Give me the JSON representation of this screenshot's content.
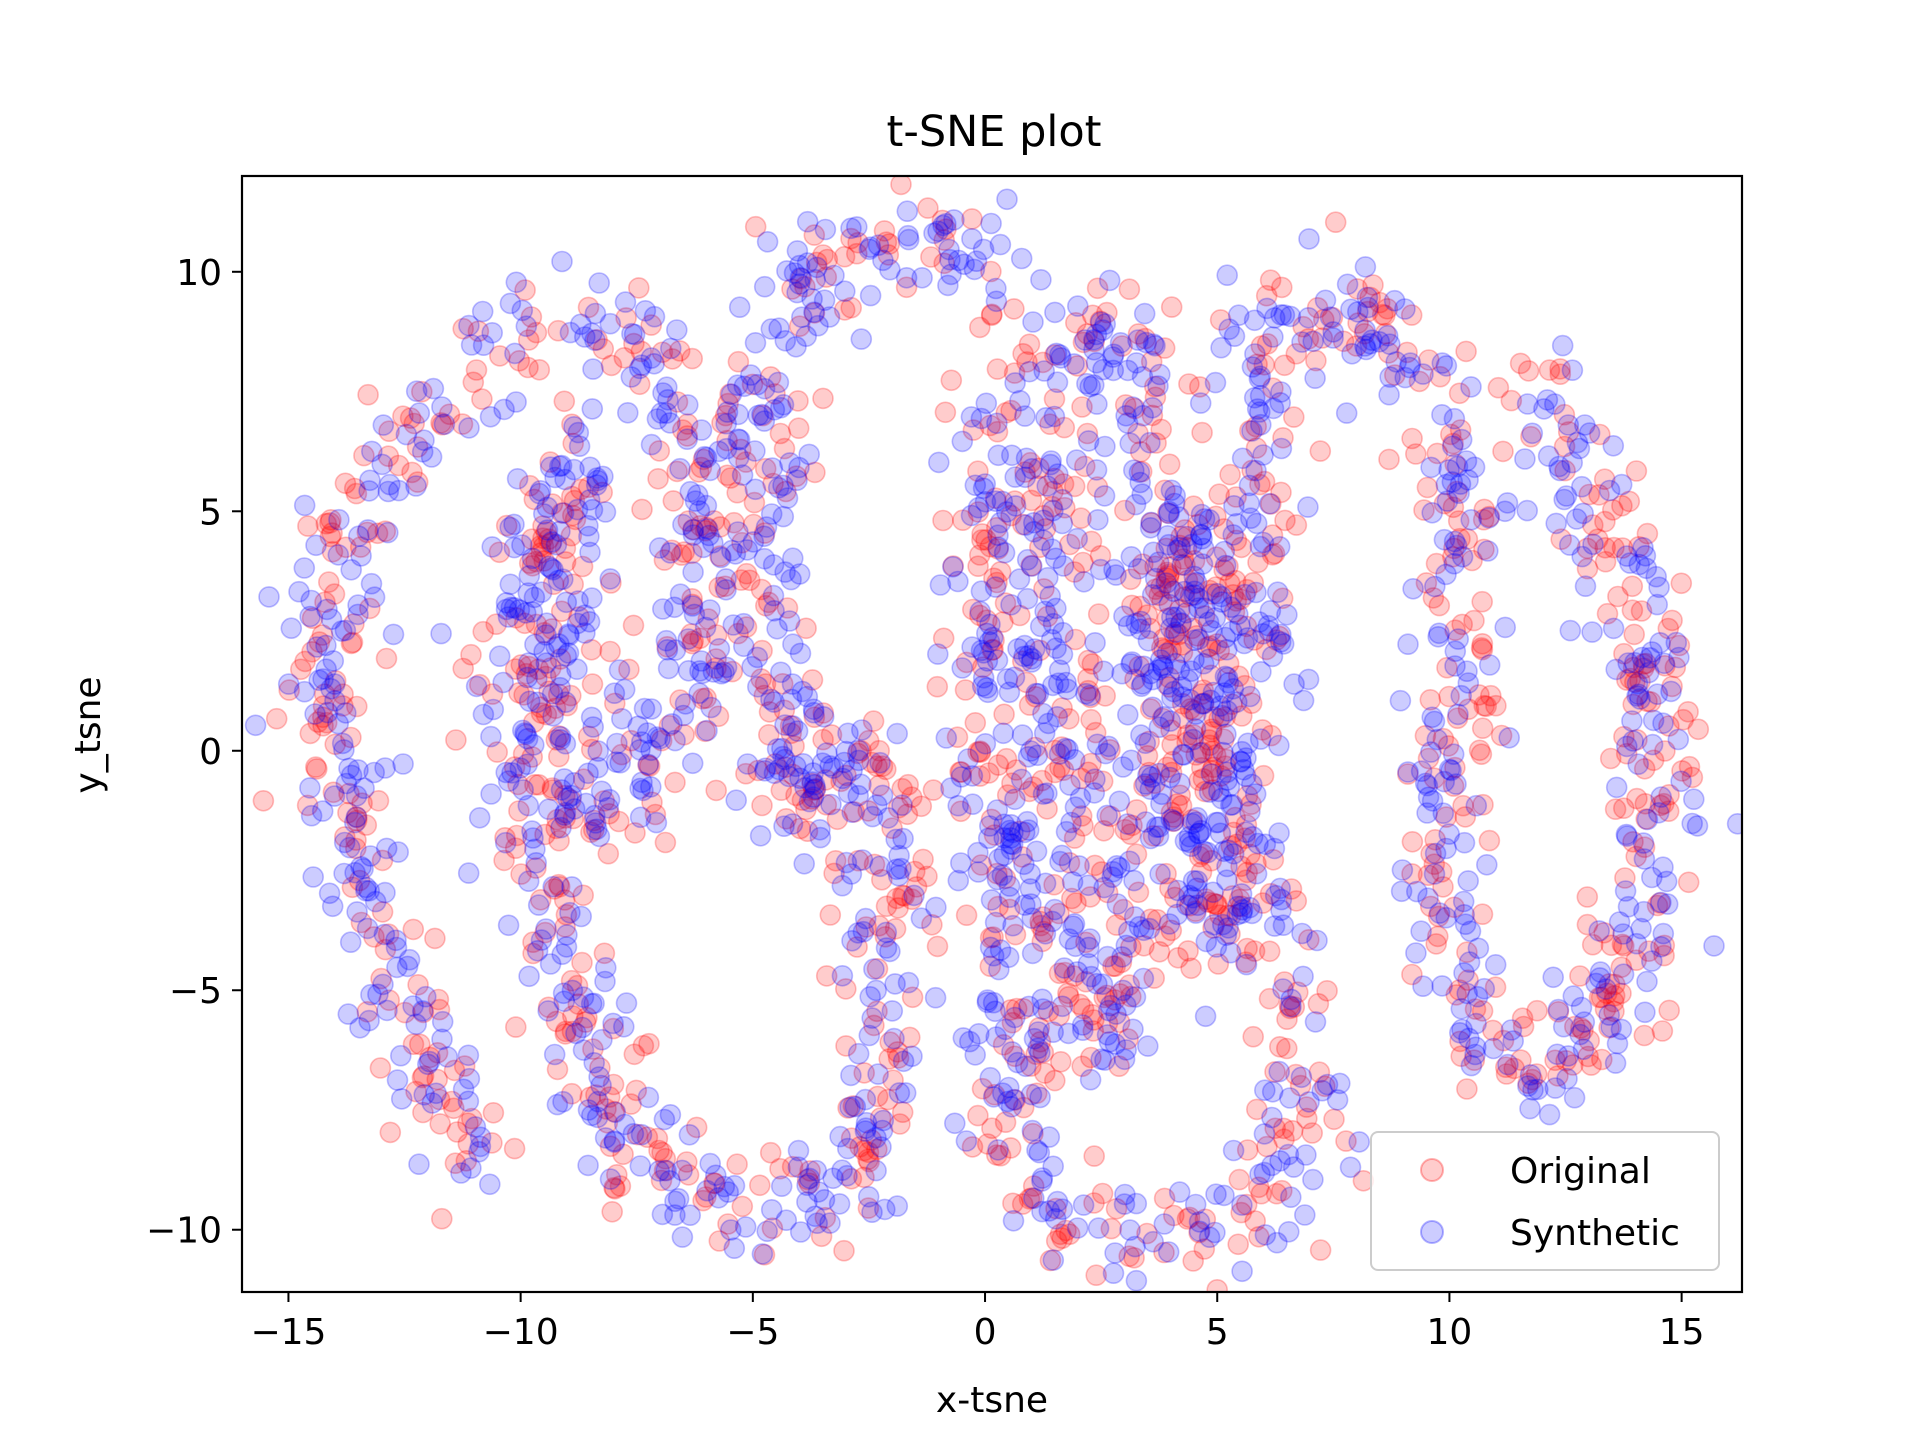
{
  "chart_data": {
    "type": "scatter",
    "title": "t-SNE plot",
    "xlabel": "x-tsne",
    "ylabel": "y_tsne",
    "xlim": [
      -16.0,
      16.3
    ],
    "ylim": [
      -11.3,
      12.0
    ],
    "xticks": [
      -15,
      -10,
      -5,
      0,
      5,
      10,
      15
    ],
    "yticks": [
      -10,
      -5,
      0,
      5,
      10
    ],
    "xtick_labels": [
      "−15",
      "−10",
      "−5",
      "0",
      "5",
      "10",
      "15"
    ],
    "ytick_labels": [
      "−10",
      "−5",
      "0",
      "5",
      "10"
    ],
    "legend_position": "lower right",
    "grid": false,
    "marker_alpha": 0.2,
    "series": [
      {
        "name": "Original",
        "color": "#ff0000",
        "description_path": [
          [
            -10.8,
            -8.8
          ],
          [
            -11.6,
            -7.5
          ],
          [
            -12.4,
            -5.8
          ],
          [
            -13.0,
            -4.0
          ],
          [
            -13.6,
            -2.0
          ],
          [
            -14.0,
            0.0
          ],
          [
            -14.2,
            1.5
          ],
          [
            -14.0,
            3.0
          ],
          [
            -13.6,
            4.5
          ],
          [
            -13.0,
            5.8
          ],
          [
            -12.0,
            7.0
          ],
          [
            -10.8,
            8.2
          ],
          [
            -9.8,
            8.8
          ],
          [
            -8.5,
            8.9
          ],
          [
            -7.5,
            8.6
          ],
          [
            -6.8,
            7.8
          ],
          [
            -6.3,
            6.5
          ],
          [
            -6.1,
            5.0
          ],
          [
            -6.2,
            3.0
          ],
          [
            -6.6,
            1.5
          ],
          [
            -7.2,
            0.0
          ],
          [
            -7.6,
            -1.0
          ],
          [
            -8.2,
            -1.8
          ],
          [
            -8.8,
            -1.2
          ],
          [
            -9.0,
            0.0
          ],
          [
            -9.1,
            1.5
          ],
          [
            -9.0,
            3.0
          ],
          [
            -8.8,
            4.5
          ],
          [
            -8.6,
            6.0
          ],
          [
            -9.3,
            5.5
          ],
          [
            -9.8,
            4.0
          ],
          [
            -10.2,
            2.0
          ],
          [
            -10.0,
            0.0
          ],
          [
            -9.6,
            -2.0
          ],
          [
            -9.2,
            -4.0
          ],
          [
            -8.6,
            -6.0
          ],
          [
            -8.0,
            -7.8
          ],
          [
            -7.0,
            -9.0
          ],
          [
            -5.8,
            -9.6
          ],
          [
            -4.6,
            -9.7
          ],
          [
            -3.6,
            -9.4
          ],
          [
            -2.8,
            -8.8
          ],
          [
            -2.3,
            -7.5
          ],
          [
            -2.1,
            -6.0
          ],
          [
            -2.0,
            -4.0
          ],
          [
            -2.1,
            -2.0
          ],
          [
            -2.4,
            -0.5
          ],
          [
            -3.0,
            0.2
          ],
          [
            -3.6,
            -0.5
          ],
          [
            -4.0,
            -1.5
          ],
          [
            -4.4,
            -0.5
          ],
          [
            -4.6,
            1.0
          ],
          [
            -4.8,
            3.0
          ],
          [
            -4.9,
            5.0
          ],
          [
            -4.9,
            7.0
          ],
          [
            -4.5,
            8.8
          ],
          [
            -3.5,
            10.2
          ],
          [
            -2.2,
            10.6
          ],
          [
            -1.0,
            10.7
          ],
          [
            0.0,
            10.0
          ],
          [
            0.4,
            8.5
          ],
          [
            0.3,
            6.8
          ],
          [
            0.1,
            5.0
          ],
          [
            0.0,
            3.0
          ],
          [
            0.0,
            1.0
          ],
          [
            0.0,
            -1.0
          ],
          [
            0.2,
            -3.0
          ],
          [
            0.4,
            -5.0
          ],
          [
            0.6,
            -7.0
          ],
          [
            0.9,
            -8.8
          ],
          [
            1.6,
            -10.0
          ],
          [
            2.6,
            -10.3
          ],
          [
            3.6,
            -10.3
          ],
          [
            4.6,
            -10.2
          ],
          [
            5.6,
            -9.8
          ],
          [
            6.4,
            -9.0
          ],
          [
            6.8,
            -7.8
          ],
          [
            6.7,
            -6.0
          ],
          [
            6.3,
            -4.5
          ],
          [
            5.9,
            -3.0
          ],
          [
            5.5,
            -1.5
          ],
          [
            5.2,
            0.0
          ],
          [
            5.0,
            1.5
          ],
          [
            4.8,
            3.0
          ],
          [
            4.5,
            4.5
          ],
          [
            4.1,
            3.0
          ],
          [
            3.8,
            1.0
          ],
          [
            3.5,
            -1.0
          ],
          [
            3.2,
            -3.0
          ],
          [
            3.0,
            -5.0
          ],
          [
            2.6,
            -6.5
          ],
          [
            2.0,
            -5.5
          ],
          [
            1.8,
            -3.5
          ],
          [
            1.7,
            -1.5
          ],
          [
            1.6,
            0.5
          ],
          [
            1.5,
            2.5
          ],
          [
            1.5,
            4.5
          ],
          [
            1.6,
            6.5
          ],
          [
            1.8,
            8.5
          ],
          [
            2.4,
            9.4
          ],
          [
            3.2,
            8.5
          ],
          [
            3.6,
            6.5
          ],
          [
            3.8,
            4.5
          ],
          [
            4.0,
            2.5
          ],
          [
            4.2,
            0.5
          ],
          [
            4.5,
            -2.0
          ],
          [
            4.8,
            -4.0
          ],
          [
            5.0,
            -2.0
          ],
          [
            5.2,
            0.0
          ],
          [
            5.4,
            2.0
          ],
          [
            5.6,
            4.0
          ],
          [
            5.8,
            6.0
          ],
          [
            6.0,
            8.0
          ],
          [
            6.4,
            9.2
          ],
          [
            7.4,
            9.3
          ],
          [
            8.4,
            8.8
          ],
          [
            9.2,
            8.0
          ],
          [
            9.8,
            7.0
          ],
          [
            10.2,
            6.0
          ],
          [
            10.3,
            4.5
          ],
          [
            10.2,
            3.0
          ],
          [
            10.0,
            1.5
          ],
          [
            9.9,
            0.0
          ],
          [
            9.8,
            -1.5
          ],
          [
            9.9,
            -3.0
          ],
          [
            10.2,
            -4.5
          ],
          [
            10.6,
            -5.8
          ],
          [
            11.2,
            -6.6
          ],
          [
            12.0,
            -6.6
          ],
          [
            12.8,
            -6.0
          ],
          [
            13.5,
            -5.0
          ],
          [
            14.0,
            -3.8
          ],
          [
            14.3,
            -2.5
          ],
          [
            14.4,
            -1.0
          ],
          [
            14.4,
            0.5
          ],
          [
            14.3,
            2.0
          ],
          [
            13.9,
            3.5
          ],
          [
            13.3,
            5.0
          ],
          [
            12.7,
            6.3
          ],
          [
            12.1,
            7.8
          ]
        ]
      },
      {
        "name": "Synthetic",
        "color": "#0000ff",
        "description_path": [
          [
            -10.8,
            -8.8
          ],
          [
            -11.6,
            -7.5
          ],
          [
            -12.4,
            -5.8
          ],
          [
            -13.0,
            -4.0
          ],
          [
            -13.6,
            -2.0
          ],
          [
            -14.0,
            0.0
          ],
          [
            -14.2,
            1.5
          ],
          [
            -14.0,
            3.0
          ],
          [
            -13.6,
            4.5
          ],
          [
            -13.0,
            5.8
          ],
          [
            -12.0,
            7.0
          ],
          [
            -10.8,
            8.2
          ],
          [
            -9.8,
            8.8
          ],
          [
            -8.5,
            8.9
          ],
          [
            -7.5,
            8.6
          ],
          [
            -6.8,
            7.8
          ],
          [
            -6.3,
            6.5
          ],
          [
            -6.1,
            5.0
          ],
          [
            -6.2,
            3.0
          ],
          [
            -6.6,
            1.5
          ],
          [
            -7.2,
            0.0
          ],
          [
            -7.6,
            -1.0
          ],
          [
            -8.2,
            -1.8
          ],
          [
            -8.8,
            -1.2
          ],
          [
            -9.0,
            0.0
          ],
          [
            -9.1,
            1.5
          ],
          [
            -9.0,
            3.0
          ],
          [
            -8.8,
            4.5
          ],
          [
            -8.6,
            6.0
          ],
          [
            -9.3,
            5.5
          ],
          [
            -9.8,
            4.0
          ],
          [
            -10.2,
            2.0
          ],
          [
            -10.0,
            0.0
          ],
          [
            -9.6,
            -2.0
          ],
          [
            -9.2,
            -4.0
          ],
          [
            -8.6,
            -6.0
          ],
          [
            -8.0,
            -7.8
          ],
          [
            -7.0,
            -9.0
          ],
          [
            -5.8,
            -9.6
          ],
          [
            -4.6,
            -9.7
          ],
          [
            -3.6,
            -9.4
          ],
          [
            -2.8,
            -8.8
          ],
          [
            -2.3,
            -7.5
          ],
          [
            -2.1,
            -6.0
          ],
          [
            -2.0,
            -4.0
          ],
          [
            -2.1,
            -2.0
          ],
          [
            -2.4,
            -0.5
          ],
          [
            -3.0,
            0.2
          ],
          [
            -3.6,
            -0.5
          ],
          [
            -4.0,
            -1.5
          ],
          [
            -4.4,
            -0.5
          ],
          [
            -4.6,
            1.0
          ],
          [
            -4.8,
            3.0
          ],
          [
            -4.9,
            5.0
          ],
          [
            -4.9,
            7.0
          ],
          [
            -4.5,
            8.8
          ],
          [
            -3.5,
            10.2
          ],
          [
            -2.2,
            10.6
          ],
          [
            -1.0,
            10.7
          ],
          [
            0.0,
            10.0
          ],
          [
            0.4,
            8.5
          ],
          [
            0.3,
            6.8
          ],
          [
            0.1,
            5.0
          ],
          [
            0.0,
            3.0
          ],
          [
            0.0,
            1.0
          ],
          [
            0.0,
            -1.0
          ],
          [
            0.2,
            -3.0
          ],
          [
            0.4,
            -5.0
          ],
          [
            0.6,
            -7.0
          ],
          [
            0.9,
            -8.8
          ],
          [
            1.6,
            -10.0
          ],
          [
            2.6,
            -10.3
          ],
          [
            3.6,
            -10.3
          ],
          [
            4.6,
            -10.2
          ],
          [
            5.6,
            -9.8
          ],
          [
            6.4,
            -9.0
          ],
          [
            6.8,
            -7.8
          ],
          [
            6.7,
            -6.0
          ],
          [
            6.3,
            -4.5
          ],
          [
            5.9,
            -3.0
          ],
          [
            5.5,
            -1.5
          ],
          [
            5.2,
            0.0
          ],
          [
            5.0,
            1.5
          ],
          [
            4.8,
            3.0
          ],
          [
            4.5,
            4.5
          ],
          [
            4.1,
            3.0
          ],
          [
            3.8,
            1.0
          ],
          [
            3.5,
            -1.0
          ],
          [
            3.2,
            -3.0
          ],
          [
            3.0,
            -5.0
          ],
          [
            2.6,
            -6.5
          ],
          [
            2.0,
            -5.5
          ],
          [
            1.8,
            -3.5
          ],
          [
            1.7,
            -1.5
          ],
          [
            1.6,
            0.5
          ],
          [
            1.5,
            2.5
          ],
          [
            1.5,
            4.5
          ],
          [
            1.6,
            6.5
          ],
          [
            1.8,
            8.5
          ],
          [
            2.4,
            9.4
          ],
          [
            3.2,
            8.5
          ],
          [
            3.6,
            6.5
          ],
          [
            3.8,
            4.5
          ],
          [
            4.0,
            2.5
          ],
          [
            4.2,
            0.5
          ],
          [
            4.5,
            -2.0
          ],
          [
            4.8,
            -4.0
          ],
          [
            5.0,
            -2.0
          ],
          [
            5.2,
            0.0
          ],
          [
            5.4,
            2.0
          ],
          [
            5.6,
            4.0
          ],
          [
            5.8,
            6.0
          ],
          [
            6.0,
            8.0
          ],
          [
            6.4,
            9.2
          ],
          [
            7.4,
            9.3
          ],
          [
            8.4,
            8.8
          ],
          [
            9.2,
            8.0
          ],
          [
            9.8,
            7.0
          ],
          [
            10.2,
            6.0
          ],
          [
            10.3,
            4.5
          ],
          [
            10.2,
            3.0
          ],
          [
            10.0,
            1.5
          ],
          [
            9.9,
            0.0
          ],
          [
            9.8,
            -1.5
          ],
          [
            9.9,
            -3.0
          ],
          [
            10.2,
            -4.5
          ],
          [
            10.6,
            -5.8
          ],
          [
            11.2,
            -6.6
          ],
          [
            12.0,
            -6.6
          ],
          [
            12.8,
            -6.0
          ],
          [
            13.5,
            -5.0
          ],
          [
            14.0,
            -3.8
          ],
          [
            14.3,
            -2.5
          ],
          [
            14.4,
            -1.0
          ],
          [
            14.4,
            0.5
          ],
          [
            14.3,
            2.0
          ],
          [
            13.9,
            3.5
          ],
          [
            13.3,
            5.0
          ],
          [
            12.7,
            6.3
          ],
          [
            12.1,
            7.8
          ]
        ]
      }
    ]
  }
}
